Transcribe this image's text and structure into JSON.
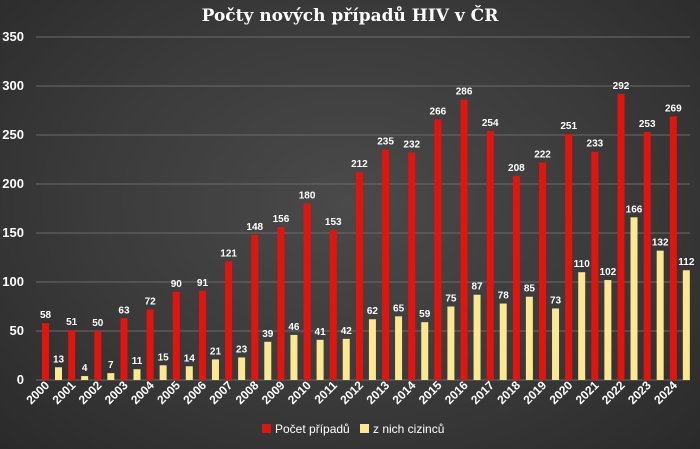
{
  "chart_data": {
    "type": "bar",
    "title": "Počty nových případů HIV v ČR",
    "categories": [
      "2000",
      "2001",
      "2002",
      "2003",
      "2004",
      "2005",
      "2006",
      "2007",
      "2008",
      "2009",
      "2010",
      "2011",
      "2012",
      "2013",
      "2014",
      "2015",
      "2016",
      "2017",
      "2018",
      "2019",
      "2020",
      "2021",
      "2022",
      "2023",
      "2024"
    ],
    "series": [
      {
        "name": "Počet případů",
        "color": "#e3140d",
        "values": [
          58,
          51,
          50,
          63,
          72,
          90,
          91,
          121,
          148,
          156,
          180,
          153,
          212,
          235,
          232,
          266,
          286,
          254,
          208,
          222,
          251,
          233,
          292,
          253,
          269
        ]
      },
      {
        "name": "z nich cizinců",
        "color": "#fde78f",
        "values": [
          13,
          4,
          7,
          11,
          15,
          14,
          21,
          23,
          39,
          46,
          41,
          42,
          62,
          65,
          59,
          75,
          87,
          78,
          85,
          73,
          110,
          102,
          166,
          132,
          112
        ]
      }
    ],
    "yticks": [
      0,
      50,
      100,
      150,
      200,
      250,
      300,
      350
    ],
    "ylim": [
      0,
      350
    ],
    "grid": true,
    "legend_position": "bottom"
  }
}
